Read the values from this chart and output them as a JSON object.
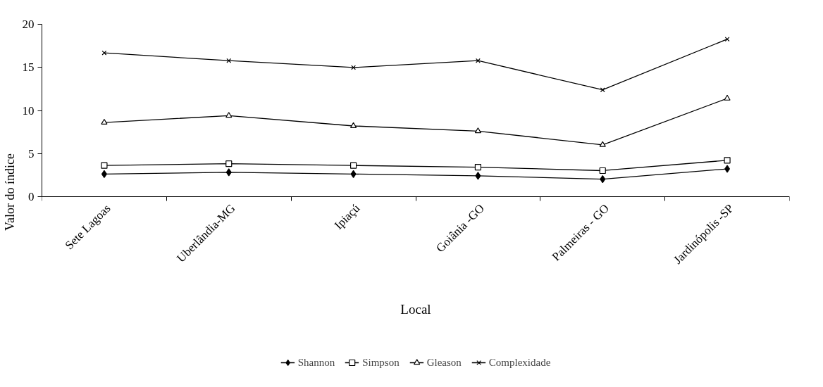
{
  "chart_data": {
    "type": "line",
    "xlabel": "Local",
    "ylabel": "Valor do índice",
    "categories": [
      "Sete Lagoas",
      "Uberlândia-MG",
      "Ipiaçú",
      "Goiânia -GO",
      "Palmeiras - GO",
      "Jardinópolis -SP"
    ],
    "series": [
      {
        "name": "Shannon",
        "color": "#000000",
        "marker": "diamond",
        "values": [
          2.6,
          2.8,
          2.6,
          2.4,
          2.0,
          3.2
        ]
      },
      {
        "name": "Simpson",
        "color": "#000000",
        "marker": "square",
        "values": [
          3.6,
          3.8,
          3.6,
          3.4,
          3.0,
          4.2
        ]
      },
      {
        "name": "Gleason",
        "color": "#000000",
        "marker": "triangle",
        "values": [
          8.6,
          9.4,
          8.2,
          7.6,
          6.0,
          11.4
        ]
      },
      {
        "name": "Complexidade",
        "color": "#000000",
        "marker": "cross",
        "values": [
          16.7,
          15.8,
          15.0,
          15.8,
          12.4,
          18.3
        ]
      }
    ],
    "ylim": [
      0,
      20
    ],
    "yticks": [
      0,
      5,
      10,
      15,
      20
    ],
    "grid": false,
    "legend": "bottom",
    "line_style": "solid"
  }
}
